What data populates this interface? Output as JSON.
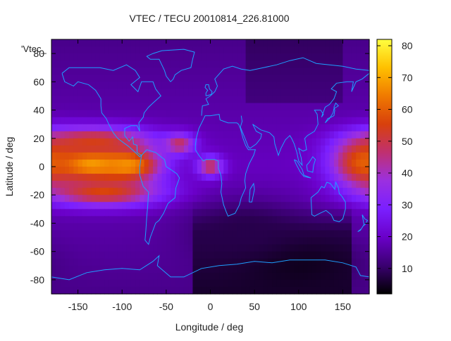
{
  "chart_data": {
    "type": "heatmap",
    "title": "VTEC / TECU 20010814_226.81000",
    "xlabel": "Longitude / deg",
    "ylabel": "Latitude / deg",
    "key_label": "'Vtec_",
    "xlim": [
      -180,
      180
    ],
    "ylim": [
      -90,
      90
    ],
    "x_ticks": [
      -150,
      -100,
      -50,
      0,
      50,
      100,
      150
    ],
    "y_ticks": [
      -80,
      -60,
      -40,
      -20,
      0,
      20,
      40,
      60,
      80
    ],
    "colorbar": {
      "range": [
        2,
        82
      ],
      "ticks": [
        10,
        20,
        30,
        40,
        50,
        60,
        70,
        80
      ],
      "palette": [
        "#000000",
        "#3a0070",
        "#6a00c8",
        "#7a1fff",
        "#9b30e0",
        "#c03070",
        "#d8400c",
        "#f07a00",
        "#ffc000",
        "#ffff40"
      ]
    },
    "coastline_color": "#1ea0ff",
    "features": [
      {
        "name": "equatorial-anomaly-pacific",
        "lon": -135,
        "lat": 2,
        "value": 72,
        "sigma_lon": 38,
        "sigma_lat": 9
      },
      {
        "name": "equatorial-anomaly-pacific-east",
        "lon": -95,
        "lat": 1,
        "value": 68,
        "sigma_lon": 25,
        "sigma_lat": 8
      },
      {
        "name": "north-crest-pacific",
        "lon": -130,
        "lat": 18,
        "value": 54,
        "sigma_lon": 45,
        "sigma_lat": 7
      },
      {
        "name": "south-crest-pacific",
        "lon": -120,
        "lat": -18,
        "value": 56,
        "sigma_lon": 45,
        "sigma_lat": 7
      },
      {
        "name": "atlantic-africa-peak",
        "lon": 0,
        "lat": 0,
        "value": 50,
        "sigma_lon": 10,
        "sigma_lat": 5
      },
      {
        "name": "atlantic-north-patch",
        "lon": -35,
        "lat": 16,
        "value": 48,
        "sigma_lon": 12,
        "sigma_lat": 5
      },
      {
        "name": "west-pacific-peak",
        "lon": 175,
        "lat": 3,
        "value": 60,
        "sigma_lon": 25,
        "sigma_lat": 12
      },
      {
        "name": "southern-hole",
        "lon": 95,
        "lat": -68,
        "value": 4,
        "sigma_lon": 45,
        "sigma_lat": 12
      },
      {
        "name": "south-indian-low",
        "lon": 40,
        "lat": -45,
        "value": 8,
        "sigma_lon": 45,
        "sigma_lat": 15
      }
    ]
  }
}
